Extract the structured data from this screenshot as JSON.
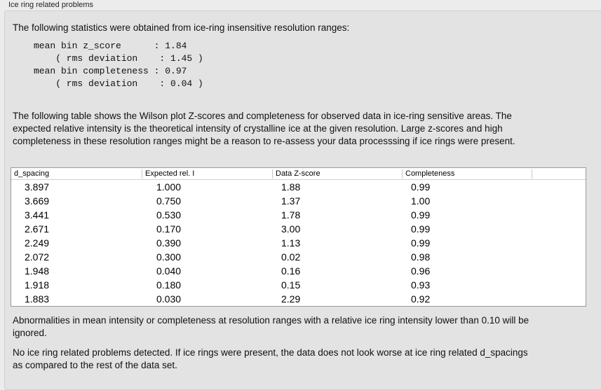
{
  "group_title": "Ice ring related problems",
  "intro": "The following statistics were obtained from ice-ring insensitive resolution ranges:",
  "stats": "mean bin z_score      : 1.84\n    ( rms deviation    : 1.45 )\nmean bin completeness : 0.97\n    ( rms deviation    : 0.04 )",
  "table_desc": "The following table shows the Wilson plot Z-scores and completeness for observed data in ice-ring sensitive areas. The expected relative intensity is the theoretical intensity of crystalline ice at the given resolution. Large z-scores and high completeness in these resolution ranges might be a reason to re-assess your data processsing if ice rings were present.",
  "table": {
    "columns": [
      "d_spacing",
      "Expected rel. I",
      "Data Z-score",
      "Completeness"
    ],
    "rows": [
      [
        "3.897",
        "1.000",
        "1.88",
        "0.99"
      ],
      [
        "3.669",
        "0.750",
        "1.37",
        "1.00"
      ],
      [
        "3.441",
        "0.530",
        "1.78",
        "0.99"
      ],
      [
        "2.671",
        "0.170",
        "3.00",
        "0.99"
      ],
      [
        "2.249",
        "0.390",
        "1.13",
        "0.99"
      ],
      [
        "2.072",
        "0.300",
        "0.02",
        "0.98"
      ],
      [
        "1.948",
        "0.040",
        "0.16",
        "0.96"
      ],
      [
        "1.918",
        "0.180",
        "0.15",
        "0.93"
      ],
      [
        "1.883",
        "0.030",
        "2.29",
        "0.92"
      ]
    ]
  },
  "note1": "Abnormalities in mean intensity or completeness at resolution ranges with a relative ice ring intensity lower than 0.10 will be ignored.",
  "note2": "No ice ring related problems detected. If ice rings were present, the data does not look worse at ice ring related d_spacings as compared to the rest of the data set."
}
